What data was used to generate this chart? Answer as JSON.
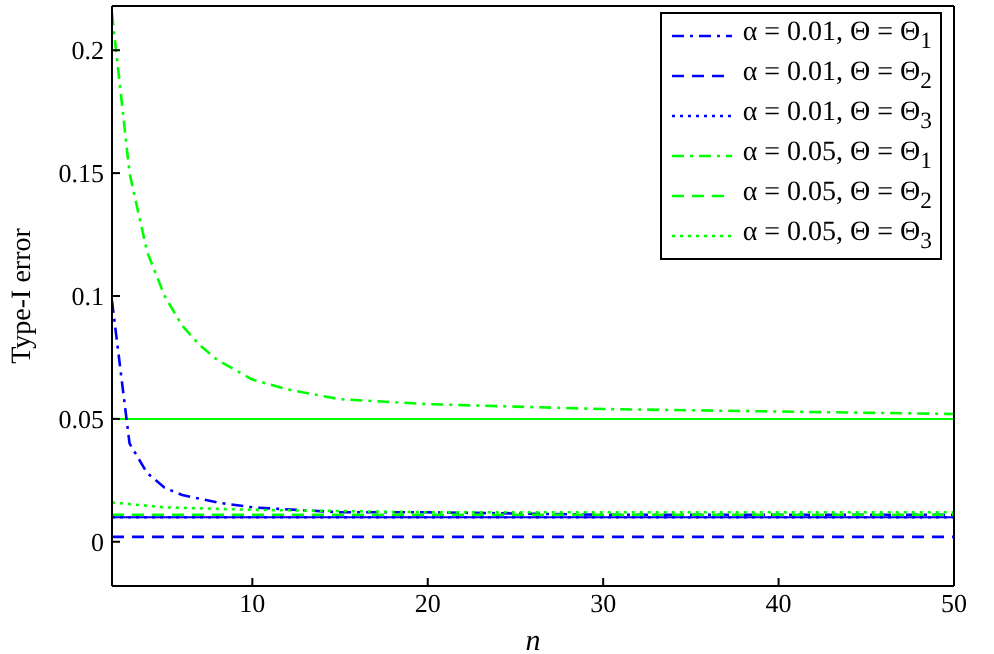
{
  "chart_data": {
    "type": "line",
    "xlabel": "n",
    "ylabel": "Type-I error",
    "xlim": [
      2,
      50
    ],
    "ylim": [
      -0.018,
      0.218
    ],
    "xticks": [
      10,
      20,
      30,
      40,
      50
    ],
    "yticks": [
      0,
      0.05,
      0.1,
      0.15,
      0.2
    ],
    "legend": "top right",
    "grid": false,
    "marker": "none",
    "series": [
      {
        "name": "α = 0.01, Θ = Θ$_{1}$",
        "color": "#0000ff",
        "line_style": "dashdot",
        "x": [
          2,
          3,
          4,
          5,
          6,
          8,
          10,
          15,
          20,
          30,
          40,
          50
        ],
        "values": [
          0.098,
          0.04,
          0.028,
          0.022,
          0.019,
          0.016,
          0.014,
          0.012,
          0.012,
          0.011,
          0.011,
          0.011
        ]
      },
      {
        "name": "α = 0.01, Θ = Θ$_{2}$",
        "color": "#0000ff",
        "line_style": "dashed",
        "x": [
          2,
          5,
          10,
          20,
          30,
          40,
          50
        ],
        "values": [
          0.002,
          0.002,
          0.002,
          0.002,
          0.002,
          0.002,
          0.002
        ]
      },
      {
        "name": "α = 0.01, Θ = Θ$_{3}$",
        "color": "#0000ff",
        "line_style": "dotted",
        "x": [
          2,
          10,
          20,
          30,
          40,
          50
        ],
        "values": [
          0.01,
          0.01,
          0.01,
          0.01,
          0.01,
          0.01
        ]
      },
      {
        "name": "α = 0.05, Θ = Θ$_{1}$",
        "color": "#00ff00",
        "line_style": "dashdot",
        "x": [
          2,
          3,
          4,
          5,
          6,
          7,
          8,
          10,
          12,
          15,
          20,
          25,
          30,
          40,
          50
        ],
        "values": [
          0.215,
          0.15,
          0.118,
          0.1,
          0.088,
          0.08,
          0.074,
          0.066,
          0.062,
          0.058,
          0.056,
          0.055,
          0.054,
          0.053,
          0.052
        ]
      },
      {
        "name": "α = 0.05, Θ = Θ$_{2}$",
        "color": "#00ff00",
        "line_style": "dashed",
        "x": [
          2,
          10,
          20,
          30,
          40,
          50
        ],
        "values": [
          0.011,
          0.011,
          0.011,
          0.011,
          0.011,
          0.011
        ]
      },
      {
        "name": "α = 0.05, Θ = Θ$_{3}$",
        "color": "#00ff00",
        "line_style": "dotted",
        "x": [
          2,
          5,
          10,
          20,
          30,
          40,
          50
        ],
        "values": [
          0.016,
          0.014,
          0.013,
          0.012,
          0.012,
          0.012,
          0.012
        ]
      }
    ],
    "ref_lines": [
      {
        "axis": "y",
        "value": 0.05,
        "color": "#00ff00",
        "line_style": "solid"
      },
      {
        "axis": "y",
        "value": 0.01,
        "color": "#0000ff",
        "line_style": "solid"
      }
    ]
  }
}
